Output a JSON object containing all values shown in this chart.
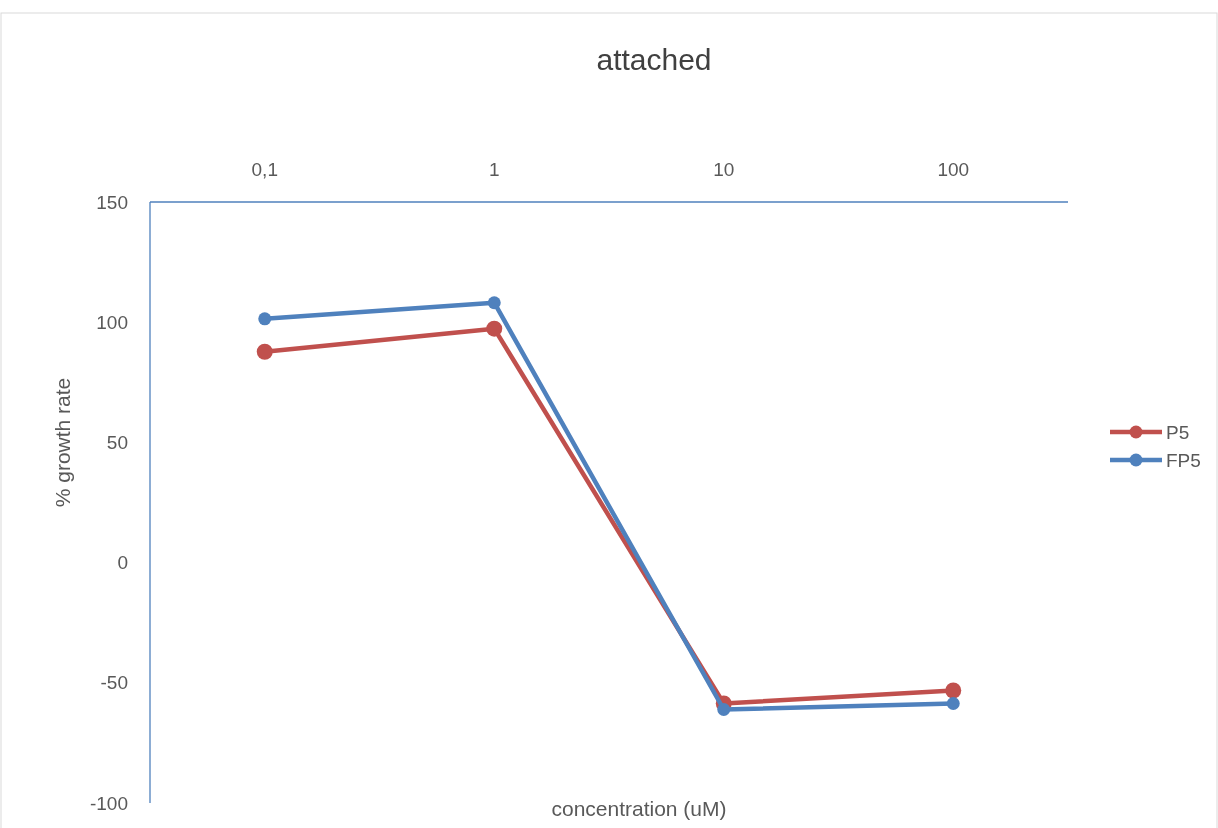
{
  "chart_data": {
    "type": "line",
    "title": "attached",
    "xlabel": "concentration (uM)",
    "ylabel": "% growth rate",
    "categories": [
      "0,1",
      "1",
      "10",
      "100"
    ],
    "series": [
      {
        "name": "P5",
        "color": "#c0504d",
        "values": [
          87.7,
          97.3,
          -58.6,
          -53.2
        ]
      },
      {
        "name": "FP5",
        "color": "#4f81bd",
        "values": [
          101.4,
          108.1,
          -61.1,
          -58.6
        ]
      }
    ],
    "ylim": [
      -100,
      150
    ],
    "yticks": [
      -100,
      -50,
      0,
      50,
      100,
      150
    ],
    "grid": false,
    "legend": "right",
    "marker": "circle",
    "line_style": "solid"
  }
}
